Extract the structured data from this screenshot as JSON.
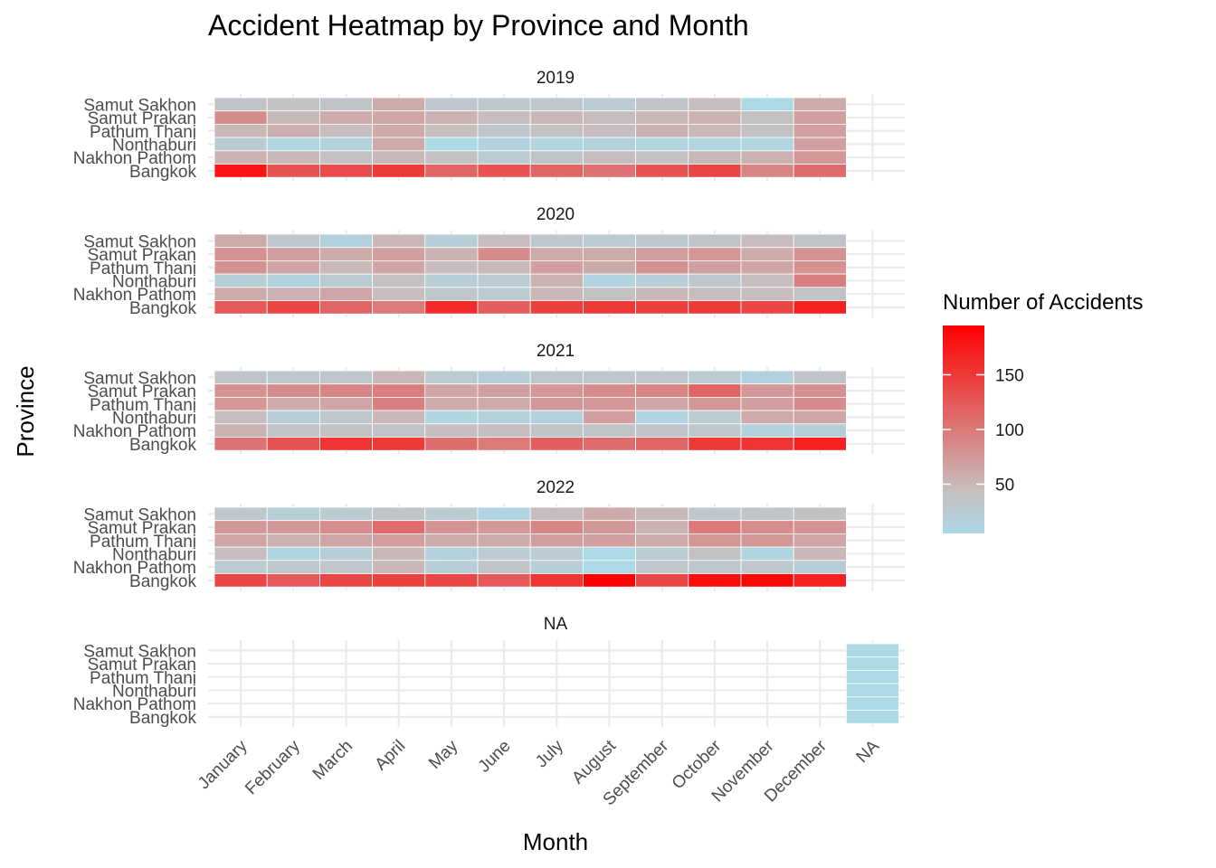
{
  "chart_data": {
    "type": "heatmap",
    "title": "Accident Heatmap by Province and Month",
    "xlabel": "Month",
    "ylabel": "Province",
    "x_categories": [
      "January",
      "February",
      "March",
      "April",
      "May",
      "June",
      "July",
      "August",
      "September",
      "October",
      "November",
      "December",
      "NA"
    ],
    "y_categories": [
      "Samut Sakhon",
      "Samut Prakan",
      "Pathum Thani",
      "Nonthaburi",
      "Nakhon Pathom",
      "Bangkok"
    ],
    "grid": true,
    "legend": {
      "title": "Number of Accidents",
      "placement": "right",
      "ticks": [
        50,
        100,
        150
      ],
      "range": [
        5,
        195
      ],
      "color_low": "#add8e6",
      "color_mid": "#c8bcbc",
      "color_high": "#ff0000"
    },
    "panels": [
      {
        "label": "2019",
        "rows": {
          "Samut Sakhon": [
            35,
            38,
            35,
            60,
            30,
            30,
            30,
            25,
            35,
            45,
            5,
            60
          ],
          "Samut Prakan": [
            85,
            48,
            60,
            65,
            55,
            45,
            50,
            45,
            50,
            55,
            40,
            70
          ],
          "Pathum Thani": [
            50,
            58,
            45,
            60,
            45,
            30,
            40,
            45,
            55,
            50,
            40,
            70
          ],
          "Nonthaburi": [
            25,
            10,
            15,
            60,
            5,
            15,
            10,
            15,
            10,
            10,
            10,
            70
          ],
          "Nakhon Pathom": [
            55,
            50,
            40,
            50,
            40,
            25,
            35,
            45,
            40,
            50,
            55,
            75
          ],
          "Bangkok": [
            180,
            130,
            135,
            150,
            115,
            130,
            115,
            105,
            130,
            140,
            90,
            110
          ]
        }
      },
      {
        "label": "2020",
        "rows": {
          "Samut Sakhon": [
            60,
            30,
            15,
            50,
            20,
            45,
            30,
            25,
            30,
            35,
            45,
            35
          ],
          "Samut Prakan": [
            80,
            70,
            60,
            70,
            55,
            85,
            60,
            60,
            70,
            75,
            60,
            80
          ],
          "Pathum Thani": [
            80,
            65,
            50,
            65,
            45,
            50,
            70,
            60,
            80,
            70,
            65,
            80
          ],
          "Nonthaburi": [
            20,
            15,
            25,
            40,
            20,
            25,
            55,
            10,
            20,
            30,
            45,
            95
          ],
          "Nakhon Pathom": [
            60,
            55,
            65,
            45,
            30,
            25,
            50,
            40,
            50,
            45,
            45,
            35
          ],
          "Bangkok": [
            125,
            140,
            115,
            100,
            160,
            120,
            145,
            150,
            145,
            150,
            140,
            170
          ]
        }
      },
      {
        "label": "2021",
        "rows": {
          "Samut Sakhon": [
            35,
            30,
            30,
            50,
            25,
            20,
            30,
            30,
            30,
            25,
            15,
            35
          ],
          "Samut Prakan": [
            80,
            85,
            90,
            95,
            65,
            70,
            75,
            85,
            90,
            115,
            75,
            80
          ],
          "Pathum Thani": [
            75,
            60,
            65,
            95,
            60,
            60,
            75,
            75,
            65,
            75,
            70,
            85
          ],
          "Nonthaburi": [
            45,
            20,
            30,
            50,
            10,
            15,
            15,
            70,
            10,
            25,
            60,
            65
          ],
          "Nakhon Pathom": [
            55,
            35,
            40,
            35,
            45,
            45,
            35,
            35,
            35,
            30,
            15,
            20
          ],
          "Bangkok": [
            105,
            130,
            155,
            150,
            110,
            100,
            120,
            110,
            115,
            150,
            155,
            170
          ]
        }
      },
      {
        "label": "2022",
        "rows": {
          "Samut Sakhon": [
            30,
            20,
            25,
            35,
            25,
            10,
            45,
            60,
            50,
            30,
            35,
            40
          ],
          "Samut Prakan": [
            75,
            75,
            85,
            110,
            80,
            75,
            90,
            75,
            55,
            100,
            85,
            80
          ],
          "Pathum Thani": [
            65,
            55,
            65,
            70,
            60,
            60,
            70,
            70,
            60,
            75,
            75,
            65
          ],
          "Nonthaburi": [
            45,
            10,
            20,
            50,
            15,
            25,
            25,
            5,
            25,
            40,
            10,
            50
          ],
          "Nakhon Pathom": [
            25,
            30,
            30,
            50,
            20,
            35,
            20,
            5,
            30,
            30,
            30,
            20
          ],
          "Bangkok": [
            140,
            125,
            140,
            145,
            140,
            125,
            155,
            195,
            140,
            185,
            190,
            170
          ]
        }
      },
      {
        "label": "NA",
        "rows": {
          "Samut Sakhon": [
            null,
            null,
            null,
            null,
            null,
            null,
            null,
            null,
            null,
            null,
            null,
            null,
            5
          ],
          "Samut Prakan": [
            null,
            null,
            null,
            null,
            null,
            null,
            null,
            null,
            null,
            null,
            null,
            null,
            5
          ],
          "Pathum Thani": [
            null,
            null,
            null,
            null,
            null,
            null,
            null,
            null,
            null,
            null,
            null,
            null,
            5
          ],
          "Nonthaburi": [
            null,
            null,
            null,
            null,
            null,
            null,
            null,
            null,
            null,
            null,
            null,
            null,
            5
          ],
          "Nakhon Pathom": [
            null,
            null,
            null,
            null,
            null,
            null,
            null,
            null,
            null,
            null,
            null,
            null,
            5
          ],
          "Bangkok": [
            null,
            null,
            null,
            null,
            null,
            null,
            null,
            null,
            null,
            null,
            null,
            null,
            5
          ]
        }
      }
    ]
  }
}
